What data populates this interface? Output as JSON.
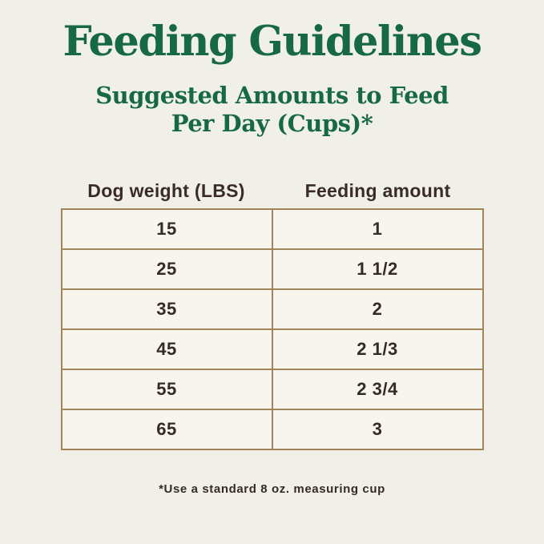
{
  "page": {
    "title": "Feeding Guidelines",
    "subtitle_line1": "Suggested Amounts to Feed",
    "subtitle_line2": "Per Day (Cups)*",
    "footnote": "*Use a standard 8 oz. measuring cup"
  },
  "colors": {
    "background": "#f1f0e8",
    "cell_background": "#f7f5ed",
    "heading_green": "#176945",
    "table_border_tan": "#a28459",
    "body_text_dark": "#362a26"
  },
  "chart_data": {
    "type": "table",
    "title": "Feeding Guidelines",
    "subtitle": "Suggested Amounts to Feed Per Day (Cups)*",
    "columns": [
      "Dog weight (LBS)",
      "Feeding amount"
    ],
    "rows": [
      [
        "15",
        "1"
      ],
      [
        "25",
        "1 1/2"
      ],
      [
        "35",
        "2"
      ],
      [
        "45",
        "2 1/3"
      ],
      [
        "55",
        "2 3/4"
      ],
      [
        "65",
        "3"
      ]
    ],
    "footnote": "*Use a standard 8 oz. measuring cup",
    "layout": {
      "grid": "on",
      "columns_equal_width": true,
      "cell_alignment": "center"
    }
  }
}
